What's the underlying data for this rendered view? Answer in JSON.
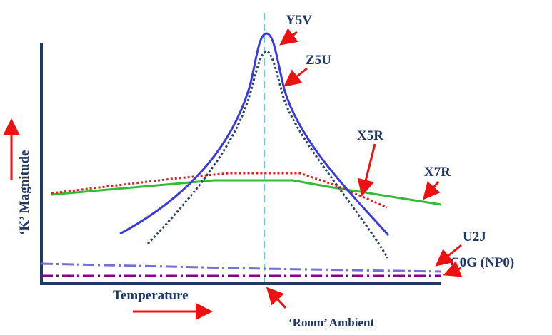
{
  "axes": {
    "x_label": "Temperature",
    "y_label": "‘K’ Magnitude",
    "reference_label": "‘Room’ Ambient"
  },
  "curves": [
    {
      "key": "y5v",
      "label": "Y5V",
      "color": "#3a3ae0",
      "style": "solid"
    },
    {
      "key": "z5u",
      "label": "Z5U",
      "color": "#2a4466",
      "style": "dotted"
    },
    {
      "key": "x5r",
      "label": "X5R",
      "color": "#e02020",
      "style": "dotted"
    },
    {
      "key": "x7r",
      "label": "X7R",
      "color": "#33bb33",
      "style": "solid"
    },
    {
      "key": "u2j",
      "label": "U2J",
      "color": "#7070d8",
      "style": "dash-dot"
    },
    {
      "key": "c0g",
      "label": "C0G (NP0)",
      "color": "#880088",
      "style": "dash-dot"
    }
  ],
  "colors": {
    "axis": "#1f3864",
    "label_text": "#1f3864",
    "arrow": "#ee1111",
    "room_line": "#66ccee"
  }
}
